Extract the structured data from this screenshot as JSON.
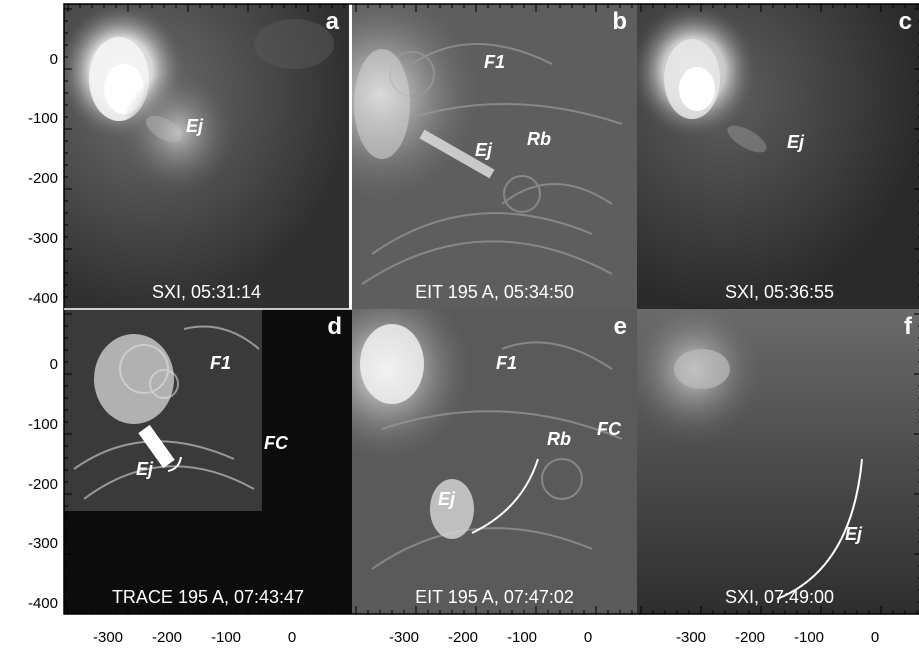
{
  "y_axis": {
    "ticks": [
      "0",
      "-100",
      "-200",
      "-300",
      "-400"
    ]
  },
  "x_axis": {
    "ticks": [
      "-300",
      "-200",
      "-100",
      "0"
    ]
  },
  "panels": [
    {
      "id": "a",
      "letter": "a",
      "caption": "SXI, 05:31:14",
      "instrument": "SXI",
      "annotations": [
        {
          "text": "Ej"
        }
      ]
    },
    {
      "id": "b",
      "letter": "b",
      "caption": "EIT 195 A, 05:34:50",
      "instrument": "EIT",
      "annotations": [
        {
          "text": "F1"
        },
        {
          "text": "Ej"
        },
        {
          "text": "Rb"
        }
      ]
    },
    {
      "id": "c",
      "letter": "c",
      "caption": "SXI, 05:36:55",
      "instrument": "SXI",
      "annotations": [
        {
          "text": "Ej"
        }
      ]
    },
    {
      "id": "d",
      "letter": "d",
      "caption": "TRACE 195 A, 07:43:47",
      "instrument": "TRACE",
      "annotations": [
        {
          "text": "F1"
        },
        {
          "text": "FC"
        },
        {
          "text": "Ej"
        }
      ]
    },
    {
      "id": "e",
      "letter": "e",
      "caption": "EIT 195 A, 07:47:02",
      "instrument": "EIT",
      "annotations": [
        {
          "text": "F1"
        },
        {
          "text": "Rb"
        },
        {
          "text": "FC"
        },
        {
          "text": "Ej"
        }
      ]
    },
    {
      "id": "f",
      "letter": "f",
      "caption": "SXI, 07:49:00",
      "instrument": "SXI",
      "annotations": [
        {
          "text": "Ej"
        }
      ]
    }
  ]
}
